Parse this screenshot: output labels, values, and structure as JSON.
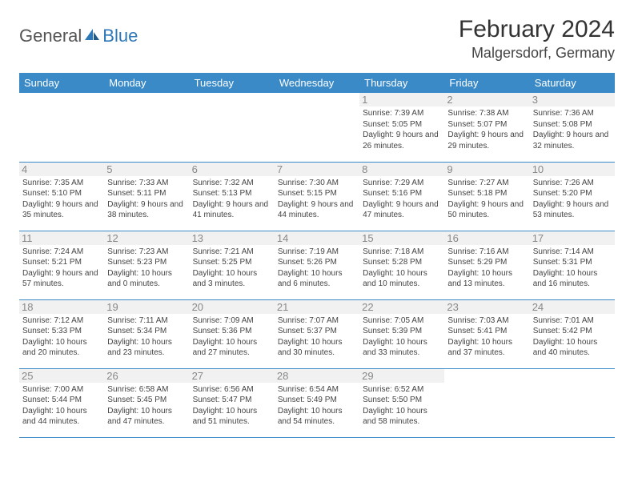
{
  "logo": {
    "text1": "General",
    "text2": "Blue"
  },
  "title": "February 2024",
  "location": "Malgersdorf, Germany",
  "colors": {
    "header_bg": "#3a8ac8",
    "header_text": "#ffffff",
    "daynum_bg": "#f1f1f1",
    "daynum_text": "#888888",
    "border": "#3a8ac8",
    "logo_blue": "#2f78b7",
    "text": "#333333"
  },
  "day_headers": [
    "Sunday",
    "Monday",
    "Tuesday",
    "Wednesday",
    "Thursday",
    "Friday",
    "Saturday"
  ],
  "weeks": [
    [
      null,
      null,
      null,
      null,
      {
        "n": "1",
        "sr": "Sunrise: 7:39 AM",
        "ss": "Sunset: 5:05 PM",
        "dl": "Daylight: 9 hours and 26 minutes."
      },
      {
        "n": "2",
        "sr": "Sunrise: 7:38 AM",
        "ss": "Sunset: 5:07 PM",
        "dl": "Daylight: 9 hours and 29 minutes."
      },
      {
        "n": "3",
        "sr": "Sunrise: 7:36 AM",
        "ss": "Sunset: 5:08 PM",
        "dl": "Daylight: 9 hours and 32 minutes."
      }
    ],
    [
      {
        "n": "4",
        "sr": "Sunrise: 7:35 AM",
        "ss": "Sunset: 5:10 PM",
        "dl": "Daylight: 9 hours and 35 minutes."
      },
      {
        "n": "5",
        "sr": "Sunrise: 7:33 AM",
        "ss": "Sunset: 5:11 PM",
        "dl": "Daylight: 9 hours and 38 minutes."
      },
      {
        "n": "6",
        "sr": "Sunrise: 7:32 AM",
        "ss": "Sunset: 5:13 PM",
        "dl": "Daylight: 9 hours and 41 minutes."
      },
      {
        "n": "7",
        "sr": "Sunrise: 7:30 AM",
        "ss": "Sunset: 5:15 PM",
        "dl": "Daylight: 9 hours and 44 minutes."
      },
      {
        "n": "8",
        "sr": "Sunrise: 7:29 AM",
        "ss": "Sunset: 5:16 PM",
        "dl": "Daylight: 9 hours and 47 minutes."
      },
      {
        "n": "9",
        "sr": "Sunrise: 7:27 AM",
        "ss": "Sunset: 5:18 PM",
        "dl": "Daylight: 9 hours and 50 minutes."
      },
      {
        "n": "10",
        "sr": "Sunrise: 7:26 AM",
        "ss": "Sunset: 5:20 PM",
        "dl": "Daylight: 9 hours and 53 minutes."
      }
    ],
    [
      {
        "n": "11",
        "sr": "Sunrise: 7:24 AM",
        "ss": "Sunset: 5:21 PM",
        "dl": "Daylight: 9 hours and 57 minutes."
      },
      {
        "n": "12",
        "sr": "Sunrise: 7:23 AM",
        "ss": "Sunset: 5:23 PM",
        "dl": "Daylight: 10 hours and 0 minutes."
      },
      {
        "n": "13",
        "sr": "Sunrise: 7:21 AM",
        "ss": "Sunset: 5:25 PM",
        "dl": "Daylight: 10 hours and 3 minutes."
      },
      {
        "n": "14",
        "sr": "Sunrise: 7:19 AM",
        "ss": "Sunset: 5:26 PM",
        "dl": "Daylight: 10 hours and 6 minutes."
      },
      {
        "n": "15",
        "sr": "Sunrise: 7:18 AM",
        "ss": "Sunset: 5:28 PM",
        "dl": "Daylight: 10 hours and 10 minutes."
      },
      {
        "n": "16",
        "sr": "Sunrise: 7:16 AM",
        "ss": "Sunset: 5:29 PM",
        "dl": "Daylight: 10 hours and 13 minutes."
      },
      {
        "n": "17",
        "sr": "Sunrise: 7:14 AM",
        "ss": "Sunset: 5:31 PM",
        "dl": "Daylight: 10 hours and 16 minutes."
      }
    ],
    [
      {
        "n": "18",
        "sr": "Sunrise: 7:12 AM",
        "ss": "Sunset: 5:33 PM",
        "dl": "Daylight: 10 hours and 20 minutes."
      },
      {
        "n": "19",
        "sr": "Sunrise: 7:11 AM",
        "ss": "Sunset: 5:34 PM",
        "dl": "Daylight: 10 hours and 23 minutes."
      },
      {
        "n": "20",
        "sr": "Sunrise: 7:09 AM",
        "ss": "Sunset: 5:36 PM",
        "dl": "Daylight: 10 hours and 27 minutes."
      },
      {
        "n": "21",
        "sr": "Sunrise: 7:07 AM",
        "ss": "Sunset: 5:37 PM",
        "dl": "Daylight: 10 hours and 30 minutes."
      },
      {
        "n": "22",
        "sr": "Sunrise: 7:05 AM",
        "ss": "Sunset: 5:39 PM",
        "dl": "Daylight: 10 hours and 33 minutes."
      },
      {
        "n": "23",
        "sr": "Sunrise: 7:03 AM",
        "ss": "Sunset: 5:41 PM",
        "dl": "Daylight: 10 hours and 37 minutes."
      },
      {
        "n": "24",
        "sr": "Sunrise: 7:01 AM",
        "ss": "Sunset: 5:42 PM",
        "dl": "Daylight: 10 hours and 40 minutes."
      }
    ],
    [
      {
        "n": "25",
        "sr": "Sunrise: 7:00 AM",
        "ss": "Sunset: 5:44 PM",
        "dl": "Daylight: 10 hours and 44 minutes."
      },
      {
        "n": "26",
        "sr": "Sunrise: 6:58 AM",
        "ss": "Sunset: 5:45 PM",
        "dl": "Daylight: 10 hours and 47 minutes."
      },
      {
        "n": "27",
        "sr": "Sunrise: 6:56 AM",
        "ss": "Sunset: 5:47 PM",
        "dl": "Daylight: 10 hours and 51 minutes."
      },
      {
        "n": "28",
        "sr": "Sunrise: 6:54 AM",
        "ss": "Sunset: 5:49 PM",
        "dl": "Daylight: 10 hours and 54 minutes."
      },
      {
        "n": "29",
        "sr": "Sunrise: 6:52 AM",
        "ss": "Sunset: 5:50 PM",
        "dl": "Daylight: 10 hours and 58 minutes."
      },
      null,
      null
    ]
  ]
}
